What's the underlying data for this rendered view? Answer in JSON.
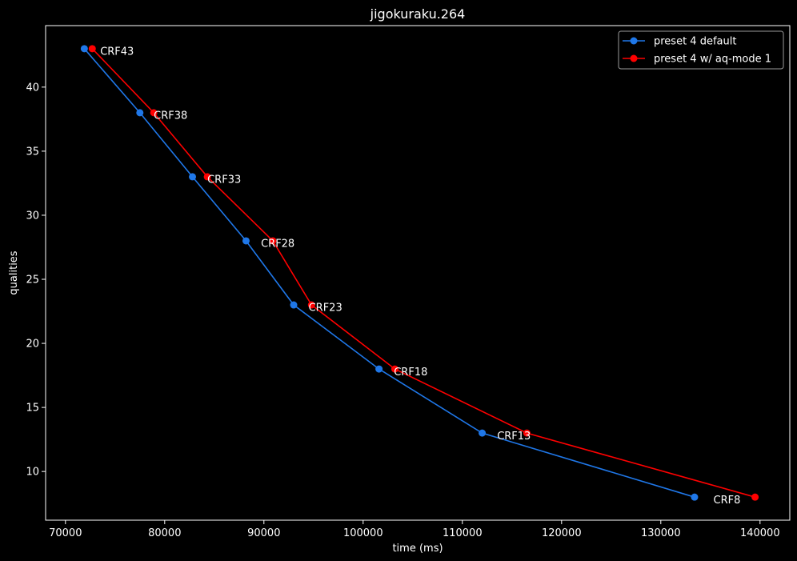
{
  "chart_data": {
    "type": "line",
    "title": "jigokuraku.264",
    "xlabel": "time (ms)",
    "ylabel": "qualities",
    "xlim": [
      68000,
      143000
    ],
    "ylim": [
      6.2,
      44.8
    ],
    "xticks": [
      70000,
      80000,
      90000,
      100000,
      110000,
      120000,
      130000,
      140000
    ],
    "yticks": [
      10,
      15,
      20,
      25,
      30,
      35,
      40
    ],
    "grid": false,
    "legend_position": "top-right",
    "series": [
      {
        "name": "preset 4 default",
        "color": "#1f77e8",
        "x": [
          71900,
          77500,
          82800,
          88200,
          93000,
          101600,
          112000,
          133400
        ],
        "y": [
          43,
          38,
          33,
          28,
          23,
          18,
          13,
          8
        ]
      },
      {
        "name": "preset 4 w/ aq-mode 1",
        "color": "#ff0000",
        "x": [
          72700,
          78900,
          84300,
          90900,
          94800,
          103200,
          116500,
          139500
        ],
        "y": [
          43,
          38,
          33,
          28,
          23,
          18,
          13,
          8
        ]
      }
    ],
    "annotations": [
      {
        "text": "CRF43",
        "x": 73500,
        "y": 42.8
      },
      {
        "text": "CRF38",
        "x": 78900,
        "y": 37.8
      },
      {
        "text": "CRF33",
        "x": 84300,
        "y": 32.8
      },
      {
        "text": "CRF28",
        "x": 89700,
        "y": 27.8
      },
      {
        "text": "CRF23",
        "x": 94500,
        "y": 22.8
      },
      {
        "text": "CRF18",
        "x": 103100,
        "y": 17.8
      },
      {
        "text": "CRF13",
        "x": 113500,
        "y": 12.8
      },
      {
        "text": "CRF8",
        "x": 135300,
        "y": 7.8
      }
    ]
  }
}
